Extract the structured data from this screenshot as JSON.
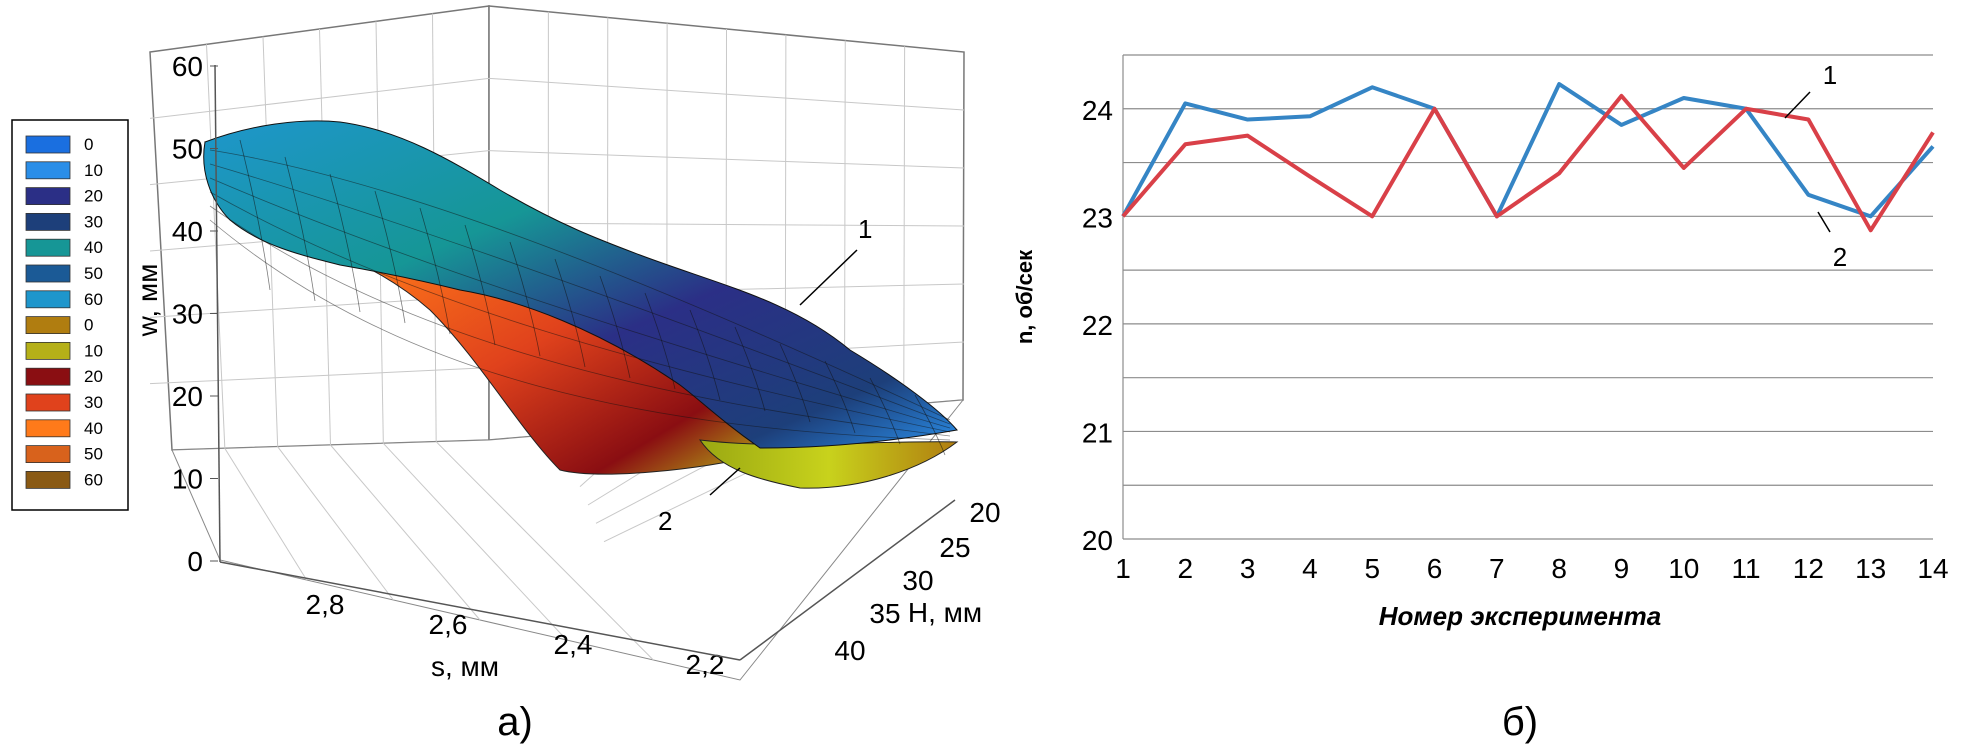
{
  "panel_a": {
    "caption": "а)",
    "zlabel": "w, мм",
    "xlabel": "s, мм",
    "ylabel": "H, мм",
    "z_ticks": [
      "0",
      "10",
      "20",
      "30",
      "40",
      "50",
      "60"
    ],
    "s_ticks": [
      "2,8",
      "2,6",
      "2,4",
      "2,2"
    ],
    "h_ticks": [
      "20",
      "25",
      "30",
      "35",
      "40"
    ],
    "curve_labels": [
      "1",
      "2"
    ],
    "legend": [
      {
        "label": "0",
        "color": "#1a6fe0"
      },
      {
        "label": "10",
        "color": "#2a8ee8"
      },
      {
        "label": "20",
        "color": "#2b2f86"
      },
      {
        "label": "30",
        "color": "#1d3f7a"
      },
      {
        "label": "40",
        "color": "#169696"
      },
      {
        "label": "50",
        "color": "#1b5a96"
      },
      {
        "label": "60",
        "color": "#1e96cc"
      },
      {
        "label": "0",
        "color": "#b07d10"
      },
      {
        "label": "10",
        "color": "#b5b018"
      },
      {
        "label": "20",
        "color": "#8a0e12"
      },
      {
        "label": "30",
        "color": "#e0421c"
      },
      {
        "label": "40",
        "color": "#ff7a1a"
      },
      {
        "label": "50",
        "color": "#d8621c"
      },
      {
        "label": "60",
        "color": "#8a5a14"
      }
    ]
  },
  "chart_data": {
    "type": "line",
    "caption": "б)",
    "xlabel": "Номер эксперимента",
    "ylabel": "n, об/сек",
    "x": [
      1,
      2,
      3,
      4,
      5,
      6,
      7,
      8,
      9,
      10,
      11,
      12,
      13,
      14
    ],
    "ylim": [
      20,
      24.5
    ],
    "yticks": [
      "20",
      "21",
      "22",
      "23",
      "24"
    ],
    "grid": true,
    "series": [
      {
        "name": "1",
        "color": "#3585c5",
        "values": [
          23.0,
          24.05,
          23.9,
          23.93,
          24.2,
          24.0,
          23.0,
          24.23,
          23.85,
          24.1,
          24.0,
          23.2,
          23.0,
          23.65
        ]
      },
      {
        "name": "2",
        "color": "#d94048",
        "values": [
          23.0,
          23.67,
          23.75,
          23.37,
          23.0,
          24.0,
          23.0,
          23.4,
          24.12,
          23.45,
          24.0,
          23.9,
          22.87,
          23.78
        ]
      }
    ]
  }
}
